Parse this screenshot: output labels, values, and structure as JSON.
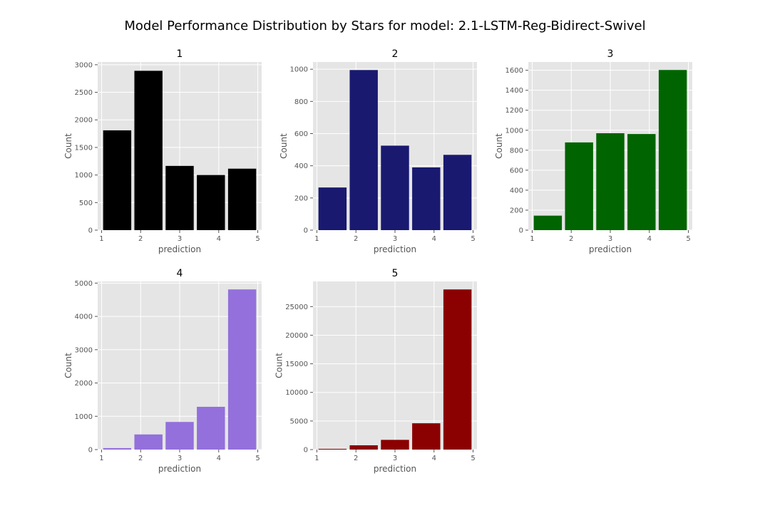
{
  "figure": {
    "title": "Model Performance Distribution by Stars for model: 2.1-LSTM-Reg-Bidirect-Swivel"
  },
  "chart_data": [
    {
      "type": "bar",
      "title": "1",
      "xlabel": "prediction",
      "ylabel": "Count",
      "color": "#000000",
      "categories": [
        1,
        2,
        3,
        4,
        5
      ],
      "values": [
        1810,
        2890,
        1165,
        1000,
        1115
      ],
      "xlim": [
        0.9,
        5.1
      ],
      "ylim": [
        0,
        3050
      ],
      "xticks": [
        "1",
        "2",
        "3",
        "4",
        "5"
      ],
      "yticks": [
        0,
        500,
        1000,
        1500,
        2000,
        2500,
        3000
      ]
    },
    {
      "type": "bar",
      "title": "2",
      "xlabel": "prediction",
      "ylabel": "Count",
      "color": "#191970",
      "categories": [
        1,
        2,
        3,
        4,
        5
      ],
      "values": [
        265,
        995,
        525,
        390,
        468
      ],
      "xlim": [
        0.9,
        5.1
      ],
      "ylim": [
        0,
        1045
      ],
      "xticks": [
        "1",
        "2",
        "3",
        "4",
        "5"
      ],
      "yticks": [
        0,
        200,
        400,
        600,
        800,
        1000
      ]
    },
    {
      "type": "bar",
      "title": "3",
      "xlabel": "prediction",
      "ylabel": "Count",
      "color": "#006400",
      "categories": [
        1,
        2,
        3,
        4,
        5
      ],
      "values": [
        145,
        878,
        970,
        962,
        1603
      ],
      "xlim": [
        0.9,
        5.1
      ],
      "ylim": [
        0,
        1683
      ],
      "xticks": [
        "1",
        "2",
        "3",
        "4",
        "5"
      ],
      "yticks": [
        0,
        200,
        400,
        600,
        800,
        1000,
        1200,
        1400,
        1600
      ]
    },
    {
      "type": "bar",
      "title": "4",
      "xlabel": "prediction",
      "ylabel": "Count",
      "color": "#9370DB",
      "categories": [
        1,
        2,
        3,
        4,
        5
      ],
      "values": [
        45,
        455,
        830,
        1285,
        4810
      ],
      "xlim": [
        0.9,
        5.1
      ],
      "ylim": [
        0,
        5050
      ],
      "xticks": [
        "1",
        "2",
        "3",
        "4",
        "5"
      ],
      "yticks": [
        0,
        1000,
        2000,
        3000,
        4000,
        5000
      ]
    },
    {
      "type": "bar",
      "title": "5",
      "xlabel": "prediction",
      "ylabel": "Count",
      "color": "#8B0000",
      "categories": [
        1,
        2,
        3,
        4,
        5
      ],
      "values": [
        130,
        750,
        1700,
        4600,
        28000
      ],
      "xlim": [
        0.9,
        5.1
      ],
      "ylim": [
        0,
        29400
      ],
      "xticks": [
        "1",
        "2",
        "3",
        "4",
        "5"
      ],
      "yticks": [
        0,
        5000,
        10000,
        15000,
        20000,
        25000
      ]
    }
  ]
}
